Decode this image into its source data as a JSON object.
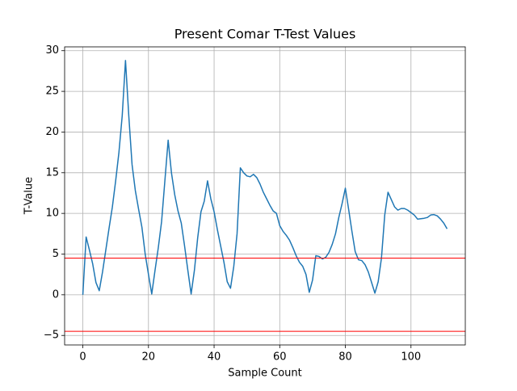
{
  "chart_data": {
    "type": "line",
    "title": "Present Comar T-Test Values",
    "x_label": "Sample Count",
    "y_label": "T-Value",
    "x": [
      0,
      1,
      2,
      3,
      4,
      5,
      6,
      7,
      8,
      9,
      10,
      11,
      12,
      13,
      14,
      15,
      16,
      17,
      18,
      19,
      20,
      21,
      22,
      23,
      24,
      25,
      26,
      27,
      28,
      29,
      30,
      31,
      32,
      33,
      34,
      35,
      36,
      37,
      38,
      39,
      40,
      41,
      42,
      43,
      44,
      45,
      46,
      47,
      48,
      49,
      50,
      51,
      52,
      53,
      54,
      55,
      56,
      57,
      58,
      59,
      60,
      61,
      62,
      63,
      64,
      65,
      66,
      67,
      68,
      69,
      70,
      71,
      72,
      73,
      74,
      75,
      76,
      77,
      78,
      79,
      80,
      81,
      82,
      83,
      84,
      85,
      86,
      87,
      88,
      89,
      90,
      91,
      92,
      93,
      94,
      95,
      96,
      97,
      98,
      99,
      100,
      101,
      102,
      103,
      104,
      105,
      106,
      107,
      108,
      109,
      110,
      111
    ],
    "values": [
      0,
      7.1,
      5.5,
      3.8,
      1.5,
      0.5,
      2.8,
      5.5,
      8.2,
      10.8,
      14,
      17.5,
      22,
      28.8,
      22,
      16,
      12.8,
      10.5,
      8.3,
      5,
      2.5,
      0.1,
      3,
      5.8,
      9,
      14,
      19,
      15,
      12.3,
      10.3,
      8.8,
      6,
      3,
      0.1,
      3,
      7,
      10.2,
      11.5,
      14,
      11.8,
      10.2,
      8,
      6,
      4,
      1.6,
      0.8,
      3.5,
      7.5,
      15.6,
      15,
      14.6,
      14.5,
      14.8,
      14.4,
      13.6,
      12.6,
      11.8,
      11,
      10.3,
      10,
      8.5,
      7.8,
      7.3,
      6.7,
      5.8,
      4.8,
      4,
      3.5,
      2.5,
      0.3,
      1.8,
      4.8,
      4.7,
      4.4,
      4.6,
      5.2,
      6.2,
      7.5,
      9.5,
      11.2,
      13.1,
      10.5,
      7.8,
      5.3,
      4.3,
      4.2,
      3.7,
      2.8,
      1.5,
      0.2,
      1.6,
      4.5,
      9.8,
      12.6,
      11.7,
      10.8,
      10.4,
      10.6,
      10.6,
      10.4,
      10.1,
      9.8,
      9.3,
      9.35,
      9.4,
      9.5,
      9.8,
      9.85,
      9.7,
      9.3,
      8.8,
      8.1
    ],
    "color": "#1f77b4",
    "hlines": [
      {
        "y": 4.5,
        "color": "red"
      },
      {
        "y": -4.5,
        "color": "red"
      }
    ],
    "xlim": [
      -5.55,
      116.55
    ],
    "ylim": [
      -6.17,
      30.47
    ],
    "xticks": [
      0,
      20,
      40,
      60,
      80,
      100
    ],
    "yticks": [
      {
        "value": -5,
        "label": "−5"
      },
      0,
      5,
      10,
      15,
      20,
      25,
      30
    ],
    "grid": true
  }
}
